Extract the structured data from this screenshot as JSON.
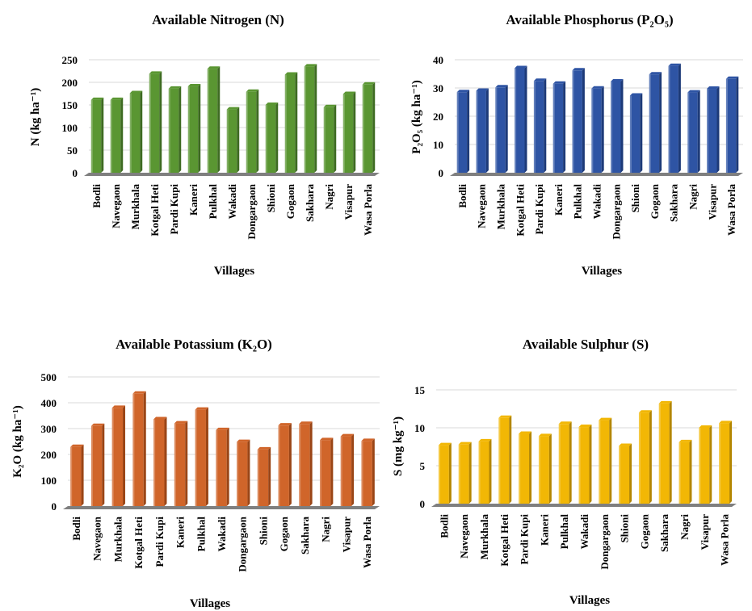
{
  "chart_data": [
    {
      "type": "bar",
      "title": "Available Nitrogen (N)",
      "ylabel": "N (kg ha⁻¹)",
      "xlabel": "Villages",
      "categories": [
        "Bodli",
        "Navegaon",
        "Murkhala",
        "Kotgal Heti",
        "Pardi Kupi",
        "Kaneri",
        "Pulkhal",
        "Wakadi",
        "Dongargaon",
        "Shioni",
        "Gogaon",
        "Sakhara",
        "Nagri",
        "Visapur",
        "Wasa Porla"
      ],
      "values": [
        161,
        161,
        176,
        219,
        186,
        191,
        230,
        140,
        179,
        150,
        217,
        235,
        145,
        174,
        195
      ],
      "yticks": [
        0,
        50,
        100,
        150,
        200,
        250
      ],
      "ylim": [
        0,
        250
      ],
      "grid": true,
      "color": "#5a9632",
      "color_dark": "#3e6b22"
    },
    {
      "type": "bar",
      "title": "Available Phosphorus (P₂O₅)",
      "ylabel": "P₂O₅ (kg ha⁻¹)",
      "xlabel": "Villages",
      "categories": [
        "Bodli",
        "Navegaon",
        "Murkhala",
        "Kotgal Heti",
        "Pardi Kupi",
        "Kaneri",
        "Pulkhal",
        "Wakadi",
        "Dongargaon",
        "Shioni",
        "Gogaon",
        "Sakhara",
        "Nagri",
        "Visapur",
        "Wasa Porla"
      ],
      "values": [
        28.5,
        29,
        30.2,
        37,
        32.5,
        31.5,
        36.2,
        29.8,
        32.3,
        27.3,
        34.8,
        37.8,
        28.4,
        29.7,
        33.2
      ],
      "yticks": [
        0,
        10,
        20,
        30,
        40
      ],
      "ylim": [
        0,
        40
      ],
      "grid": true,
      "color": "#2e54a4",
      "color_dark": "#1d3a78"
    },
    {
      "type": "bar",
      "title": "Available Potassium (K₂O)",
      "ylabel": "K₂O (kg ha⁻¹)",
      "xlabel": "Villages",
      "categories": [
        "Bodli",
        "Navegaon",
        "Murkhala",
        "Kotgal Heti",
        "Pardi Kupi",
        "Kaneri",
        "Pulkhal",
        "Wakadi",
        "Dongargaon",
        "Shioni",
        "Gogaon",
        "Sakhara",
        "Nagri",
        "Visapur",
        "Wasa Porla"
      ],
      "values": [
        229,
        310,
        380,
        435,
        336,
        320,
        373,
        294,
        248,
        219,
        312,
        318,
        255,
        270,
        252
      ],
      "yticks": [
        0,
        100,
        200,
        300,
        400,
        500
      ],
      "ylim": [
        0,
        500
      ],
      "grid": true,
      "color": "#d0652a",
      "color_dark": "#9a4516"
    },
    {
      "type": "bar",
      "title": "Available Sulphur (S)",
      "ylabel": "S (mg kg⁻¹)",
      "xlabel": "Villages",
      "categories": [
        "Bodli",
        "Navegaon",
        "Murkhala",
        "Kotgal Heti",
        "Pardi Kupi",
        "Kaneri",
        "Pulkhal",
        "Wakadi",
        "Dongargaon",
        "Shioni",
        "Gogaon",
        "Sakhara",
        "Nagri",
        "Visapur",
        "Wasa Porla"
      ],
      "values": [
        7.7,
        7.8,
        8.2,
        11.3,
        9.2,
        8.9,
        10.5,
        10.1,
        11.0,
        7.6,
        12.0,
        13.2,
        8.1,
        10.0,
        10.6
      ],
      "yticks": [
        0,
        5,
        10,
        15
      ],
      "ylim": [
        0,
        15
      ],
      "grid": true,
      "color": "#f2b705",
      "color_dark": "#b38600"
    }
  ]
}
